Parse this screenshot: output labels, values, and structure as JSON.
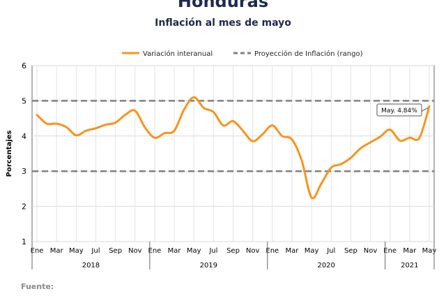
{
  "title": "Honduras",
  "subtitle": "Inflación al mes de mayo",
  "footer_label": "Fuente:",
  "chart_data": {
    "type": "line",
    "ylabel": "Porcentajes",
    "ylim": [
      1,
      6
    ],
    "yticks": [
      1,
      2,
      3,
      4,
      5,
      6
    ],
    "grid": true,
    "legend": {
      "placement": "top",
      "entries": [
        {
          "label": "Variación interanual",
          "style": "solid",
          "color": "#f7941d"
        },
        {
          "label": "Proyección de Inflación (rango)",
          "style": "dashed",
          "color": "#808080"
        }
      ]
    },
    "month_labels": [
      "Ene",
      "Mar",
      "May",
      "Jul",
      "Sep",
      "Nov",
      "Ene",
      "Mar",
      "May",
      "Jul",
      "Sep",
      "Nov",
      "Ene",
      "Mar",
      "May",
      "Jul",
      "Sep",
      "Nov",
      "Ene",
      "Mar",
      "May"
    ],
    "year_groups": [
      {
        "label": "2018",
        "months": 12
      },
      {
        "label": "2019",
        "months": 12
      },
      {
        "label": "2020",
        "months": 12
      },
      {
        "label": "2021",
        "months": 5
      }
    ],
    "series": [
      {
        "name": "Variación interanual",
        "color": "#f7941d",
        "values": [
          4.6,
          4.35,
          4.35,
          4.25,
          4.02,
          4.15,
          4.22,
          4.32,
          4.38,
          4.6,
          4.72,
          4.25,
          3.95,
          4.08,
          4.15,
          4.75,
          5.1,
          4.8,
          4.68,
          4.3,
          4.42,
          4.15,
          3.85,
          4.05,
          4.3,
          4.0,
          3.9,
          3.3,
          2.25,
          2.65,
          3.1,
          3.2,
          3.38,
          3.65,
          3.82,
          3.98,
          4.18,
          3.87,
          3.95,
          3.95,
          4.84
        ]
      }
    ],
    "range": {
      "name": "Proyección de Inflación (rango)",
      "lower": 3,
      "upper": 5,
      "color": "#808080"
    },
    "annotation": {
      "text": "May. 4.84%",
      "index": 40,
      "value": 4.84
    }
  }
}
